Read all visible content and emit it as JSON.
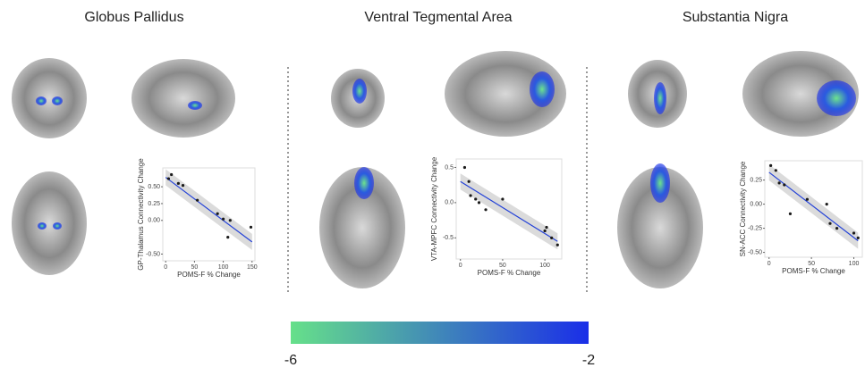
{
  "chart_data": [
    {
      "type": "scatter",
      "title": "Globus Pallidus",
      "ylabel": "GP-Thalamus Connectivity Change",
      "xlabel": "POMS-F % Change",
      "x": [
        5,
        10,
        22,
        30,
        55,
        90,
        100,
        108,
        112,
        148
      ],
      "values": [
        0.62,
        0.68,
        0.55,
        0.52,
        0.3,
        0.1,
        0.02,
        -0.25,
        0.0,
        -0.1
      ],
      "trend": {
        "x": [
          0,
          150
        ],
        "values": [
          0.64,
          -0.32
        ]
      },
      "xlim": [
        -5,
        155
      ],
      "ylim": [
        -0.6,
        0.78
      ],
      "xticks": [
        0,
        50,
        100,
        150
      ],
      "yticks": [
        {
          "value": 0.5,
          "label": "0.50"
        },
        {
          "value": 0.25,
          "label": "0.25"
        },
        {
          "value": 0,
          "label": "0.00"
        },
        {
          "value": -0.5,
          "label": "-0.50"
        }
      ],
      "color": "#1a1a1a",
      "trend_color": "#2442d8"
    },
    {
      "type": "scatter",
      "title": "Ventral Tegmental Area",
      "ylabel": "VTA-MPFC Connectivity Change",
      "xlabel": "POMS-F % Change",
      "x": [
        5,
        10,
        12,
        18,
        22,
        30,
        50,
        100,
        102,
        108,
        115
      ],
      "values": [
        0.5,
        0.3,
        0.1,
        0.05,
        0.0,
        -0.1,
        0.05,
        -0.4,
        -0.35,
        -0.5,
        -0.6
      ],
      "trend": {
        "x": [
          0,
          115
        ],
        "values": [
          0.3,
          -0.55
        ]
      },
      "xlim": [
        -5,
        120
      ],
      "ylim": [
        -0.8,
        0.62
      ],
      "xticks": [
        0,
        50,
        100
      ],
      "yticks": [
        {
          "value": 0.5,
          "label": "0.5"
        },
        {
          "value": 0,
          "label": "0.0"
        },
        {
          "value": -0.5,
          "label": "-0.5"
        }
      ],
      "color": "#1a1a1a",
      "trend_color": "#2442d8"
    },
    {
      "type": "scatter",
      "title": "Substantia Nigra",
      "ylabel": "SN-ACC Connectivity Change",
      "xlabel": "POMS-F % Change",
      "x": [
        2,
        8,
        12,
        18,
        25,
        45,
        68,
        72,
        80,
        100,
        105
      ],
      "values": [
        0.4,
        0.35,
        0.22,
        0.2,
        -0.1,
        0.05,
        0.0,
        -0.2,
        -0.25,
        -0.3,
        -0.35
      ],
      "trend": {
        "x": [
          0,
          105
        ],
        "values": [
          0.33,
          -0.38
        ]
      },
      "xlim": [
        -5,
        110
      ],
      "ylim": [
        -0.55,
        0.45
      ],
      "xticks": [
        0,
        50,
        100
      ],
      "yticks": [
        {
          "value": 0.25,
          "label": "0.25"
        },
        {
          "value": 0,
          "label": "0.00"
        },
        {
          "value": -0.25,
          "label": "-0.25"
        },
        {
          "value": -0.5,
          "label": "-0.50"
        }
      ],
      "color": "#1a1a1a",
      "trend_color": "#2442d8"
    }
  ],
  "colorbar": {
    "ticks": [
      -6,
      -2
    ],
    "colors": [
      "#66e08a",
      "#1a2ee8"
    ]
  }
}
